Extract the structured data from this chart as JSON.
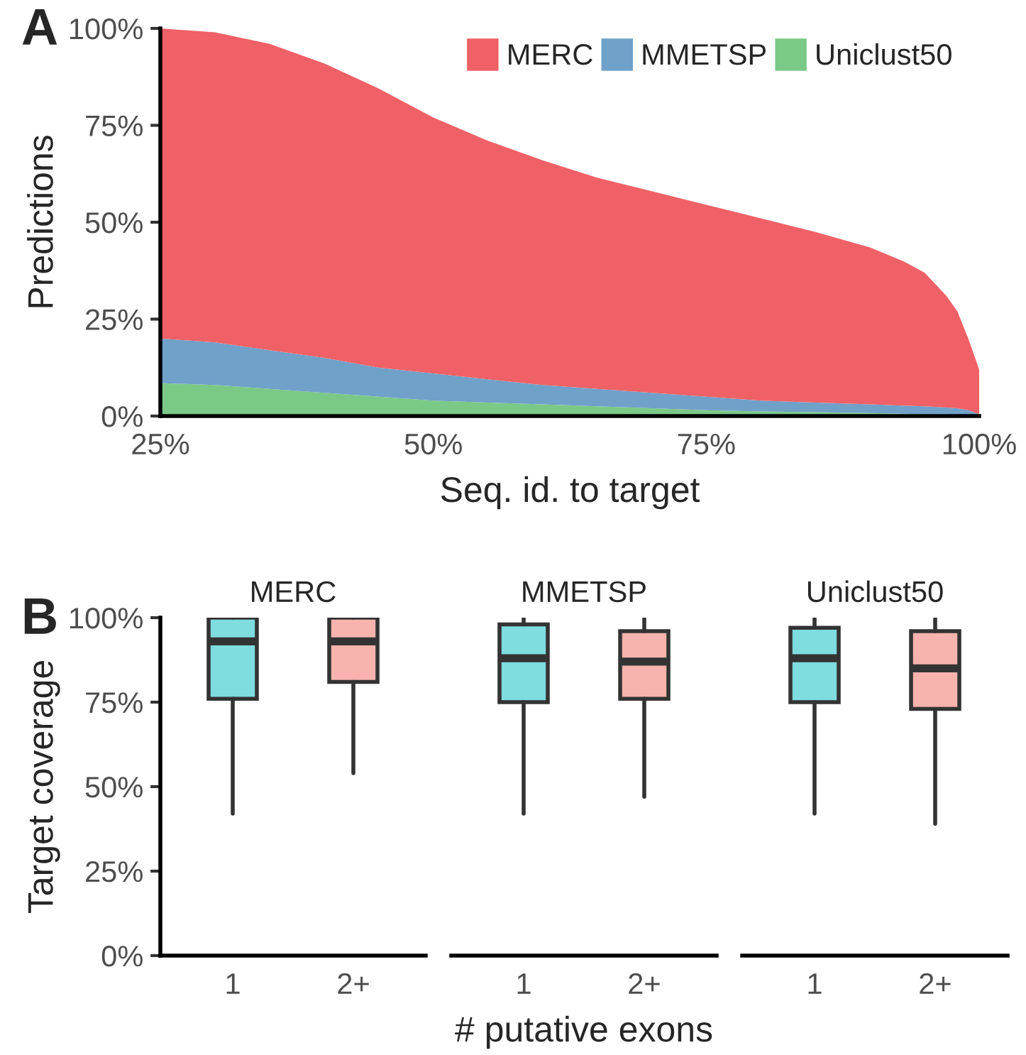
{
  "chart_data": [
    {
      "type": "area",
      "stacked": true,
      "xlabel": "Seq. id. to target",
      "ylabel": "Predictions",
      "annotations": [
        "A"
      ],
      "legend": "top right",
      "grid": false,
      "x": [
        25,
        30,
        35,
        40,
        45,
        50,
        55,
        60,
        65,
        70,
        75,
        80,
        85,
        90,
        93,
        95,
        97,
        98,
        99,
        100
      ],
      "xlim": [
        25,
        100
      ],
      "xticks": [
        {
          "value": 25,
          "label": "25%"
        },
        {
          "value": 50,
          "label": "50%"
        },
        {
          "value": 75,
          "label": "75%"
        },
        {
          "value": 100,
          "label": "100%"
        }
      ],
      "ylim": [
        0,
        100
      ],
      "yticks": [
        {
          "value": 0,
          "label": "0%"
        },
        {
          "value": 25,
          "label": "25%"
        },
        {
          "value": 50,
          "label": "50%"
        },
        {
          "value": 75,
          "label": "75%"
        },
        {
          "value": 100,
          "label": "100%"
        }
      ],
      "series": [
        {
          "name": "Uniclust50",
          "color": "#7bc987",
          "values": [
            8.5,
            8,
            7,
            6,
            5,
            4,
            3.5,
            3,
            2.5,
            2,
            1.5,
            1.2,
            1,
            0.8,
            0.6,
            0.5,
            0.4,
            0.3,
            0.3,
            0.2
          ]
        },
        {
          "name": "MMETSP",
          "color": "#70a1c9",
          "values": [
            11.5,
            11,
            10,
            9,
            7.5,
            7,
            6,
            5,
            4.5,
            4,
            3.5,
            2.8,
            2.5,
            2.2,
            2.1,
            2,
            1.8,
            1.7,
            1.2,
            0.3
          ]
        },
        {
          "name": "MERC",
          "color": "#ef6167",
          "values": [
            80,
            80,
            79,
            76,
            72,
            66,
            61.5,
            58,
            54.5,
            52,
            49.5,
            47,
            44,
            40.5,
            37.3,
            34.5,
            28.8,
            25,
            18.5,
            11.5
          ]
        }
      ]
    },
    {
      "type": "box",
      "title": "MERC",
      "ylabel": "Target coverage",
      "annotations": [
        "B"
      ],
      "categories": [
        "1",
        "2+"
      ],
      "colors": [
        "#7fdcdf",
        "#f8b3ae"
      ],
      "grid": false,
      "ylim": [
        0,
        100
      ],
      "yticks": [
        {
          "value": 0,
          "label": "0%"
        },
        {
          "value": 25,
          "label": "25%"
        },
        {
          "value": 50,
          "label": "50%"
        },
        {
          "value": 75,
          "label": "75%"
        },
        {
          "value": 100,
          "label": "100%"
        }
      ],
      "boxes": [
        {
          "low": 42,
          "q1": 76,
          "median": 93,
          "q3": 100,
          "high": 100
        },
        {
          "low": 54,
          "q1": 81,
          "median": 93,
          "q3": 100,
          "high": 100
        }
      ]
    },
    {
      "type": "box",
      "title": "MMETSP",
      "xlabel": "# putative exons",
      "categories": [
        "1",
        "2+"
      ],
      "colors": [
        "#7fdcdf",
        "#f8b3ae"
      ],
      "grid": false,
      "tick_labels": "x",
      "ylim": [
        0,
        100
      ],
      "boxes": [
        {
          "low": 42,
          "q1": 75,
          "median": 88,
          "q3": 98,
          "high": 100
        },
        {
          "low": 47,
          "q1": 76,
          "median": 87,
          "q3": 96,
          "high": 100
        }
      ]
    },
    {
      "type": "box",
      "title": "Uniclust50",
      "categories": [
        "1",
        "2+"
      ],
      "colors": [
        "#7fdcdf",
        "#f8b3ae"
      ],
      "grid": false,
      "tick_labels": "x",
      "ylim": [
        0,
        100
      ],
      "boxes": [
        {
          "low": 42,
          "q1": 75,
          "median": 88,
          "q3": 97,
          "high": 100
        },
        {
          "low": 39,
          "q1": 73,
          "median": 85,
          "q3": 96,
          "high": 100
        }
      ]
    }
  ]
}
